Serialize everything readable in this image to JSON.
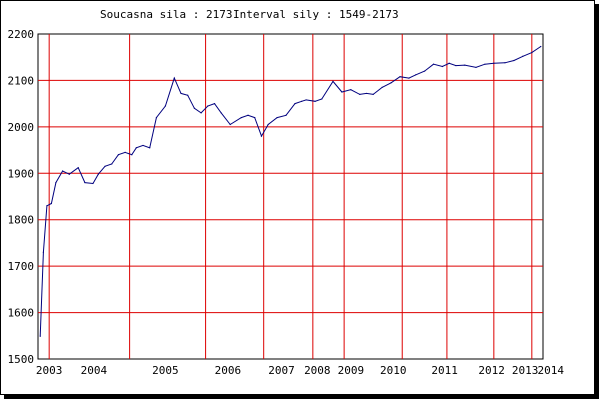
{
  "header": {
    "current_label": "Soucasna sila : 2173",
    "interval_label": "Interval sily : 1549-2173"
  },
  "chart_data": {
    "type": "line",
    "title": "",
    "xlabel": "",
    "ylabel": "",
    "xlim": [
      2002.75,
      2014.05
    ],
    "ylim": [
      1500,
      2200
    ],
    "grid": true,
    "legend": "none",
    "y_ticks": [
      1500,
      1600,
      1700,
      1800,
      1900,
      2000,
      2100,
      2200
    ],
    "x_tick_labels": [
      {
        "label": "2003",
        "at": 2003.0
      },
      {
        "label": "2004",
        "at": 2004.0
      },
      {
        "label": "2005",
        "at": 2005.6
      },
      {
        "label": "2006",
        "at": 2007.0
      },
      {
        "label": "2007",
        "at": 2008.2
      },
      {
        "label": "2008",
        "at": 2009.0
      },
      {
        "label": "2009",
        "at": 2009.75
      },
      {
        "label": "2010",
        "at": 2010.7
      },
      {
        "label": "2011",
        "at": 2011.85
      },
      {
        "label": "2012",
        "at": 2012.9
      },
      {
        "label": "2013",
        "at": 2013.65
      },
      {
        "label": "2014",
        "at": 2014.1
      }
    ],
    "x_gridlines": [
      2003.0,
      2004.8,
      2006.5,
      2007.8,
      2008.9,
      2009.6,
      2010.9,
      2011.9,
      2012.95,
      2013.8
    ],
    "series": [
      {
        "name": "",
        "color": "#00007f",
        "x": [
          2002.8,
          2002.87,
          2002.95,
          2003.05,
          2003.15,
          2003.3,
          2003.45,
          2003.65,
          2003.8,
          2003.98,
          2004.1,
          2004.25,
          2004.4,
          2004.55,
          2004.7,
          2004.85,
          2004.95,
          2005.1,
          2005.25,
          2005.4,
          2005.6,
          2005.8,
          2005.95,
          2006.1,
          2006.25,
          2006.4,
          2006.55,
          2006.7,
          2006.85,
          2007.05,
          2007.3,
          2007.45,
          2007.6,
          2007.75,
          2007.9,
          2008.1,
          2008.3,
          2008.5,
          2008.65,
          2008.75,
          2008.95,
          2009.1,
          2009.35,
          2009.55,
          2009.75,
          2009.95,
          2010.1,
          2010.25,
          2010.45,
          2010.65,
          2010.85,
          2011.05,
          2011.2,
          2011.4,
          2011.6,
          2011.8,
          2011.95,
          2012.1,
          2012.3,
          2012.55,
          2012.75,
          2012.95,
          2013.2,
          2013.4,
          2013.6,
          2013.8,
          2014.0
        ],
        "values": [
          1549,
          1730,
          1830,
          1835,
          1880,
          1905,
          1898,
          1912,
          1880,
          1878,
          1898,
          1915,
          1920,
          1940,
          1945,
          1940,
          1955,
          1960,
          1955,
          2020,
          2045,
          2105,
          2072,
          2068,
          2040,
          2030,
          2045,
          2050,
          2030,
          2005,
          2020,
          2025,
          2020,
          1980,
          2005,
          2020,
          2025,
          2050,
          2055,
          2058,
          2055,
          2060,
          2098,
          2075,
          2080,
          2070,
          2072,
          2070,
          2085,
          2095,
          2108,
          2105,
          2112,
          2120,
          2135,
          2130,
          2137,
          2132,
          2133,
          2128,
          2135,
          2137,
          2138,
          2143,
          2152,
          2160,
          2173
        ]
      }
    ]
  }
}
